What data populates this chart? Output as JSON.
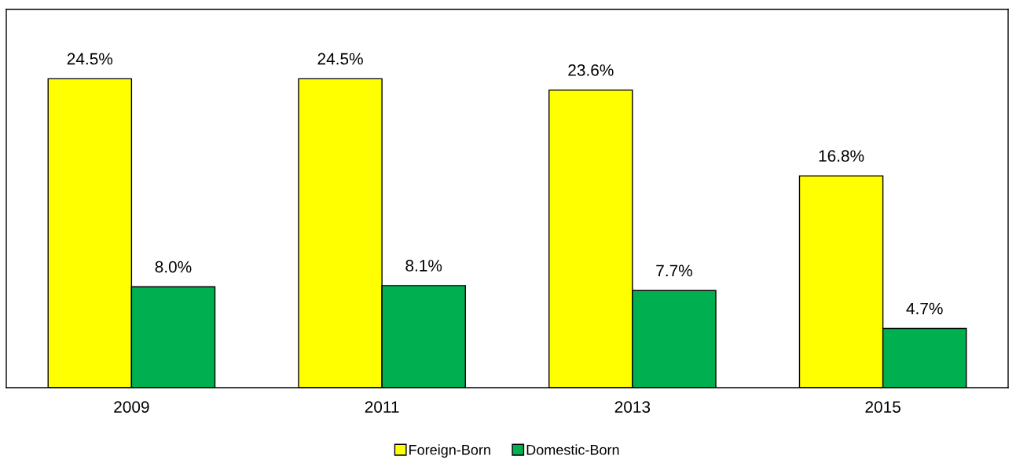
{
  "chart_data": {
    "type": "bar",
    "categories": [
      "2009",
      "2011",
      "2013",
      "2015"
    ],
    "series": [
      {
        "name": "Foreign-Born",
        "color": "#ffff00",
        "values": [
          24.5,
          24.5,
          23.6,
          16.8
        ],
        "value_labels": [
          "24.5%",
          "24.5%",
          "23.6%",
          "16.8%"
        ]
      },
      {
        "name": "Domestic-Born",
        "color": "#00b050",
        "values": [
          8.0,
          8.1,
          7.7,
          4.7
        ],
        "value_labels": [
          "8.0%",
          "8.1%",
          "7.7%",
          "4.7%"
        ]
      }
    ],
    "ylim": [
      0,
      30
    ],
    "tick_labels": "x",
    "grid": false,
    "legend": "bottom"
  }
}
